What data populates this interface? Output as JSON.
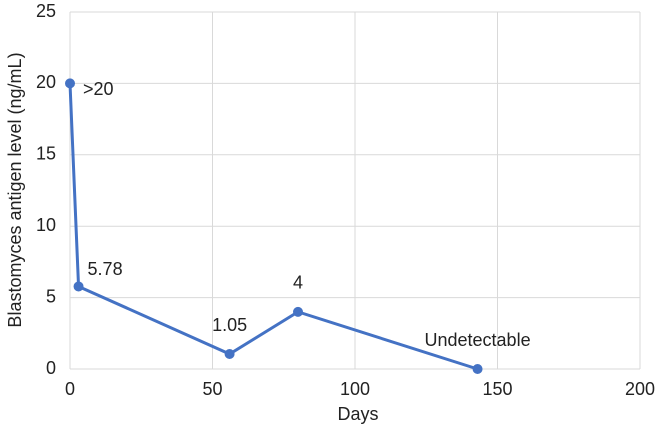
{
  "chart_data": {
    "type": "line",
    "x_label": "Days",
    "y_label": "Blastomyces antigen level (ng/mL)",
    "x": [
      0,
      3,
      56,
      80,
      143
    ],
    "series": [
      {
        "name": "Blastomyces antigen level",
        "color": "#4472c4",
        "values": [
          20,
          5.78,
          1.05,
          4,
          0
        ],
        "value_labels": [
          ">20",
          "5.78",
          "1.05",
          "4",
          "Undetectable"
        ]
      }
    ],
    "xlim": [
      0,
      200
    ],
    "xticks": [
      0,
      50,
      100,
      150,
      200
    ],
    "ylim": [
      0,
      25
    ],
    "yticks": [
      0,
      5,
      10,
      15,
      20,
      25
    ],
    "grid": true
  }
}
